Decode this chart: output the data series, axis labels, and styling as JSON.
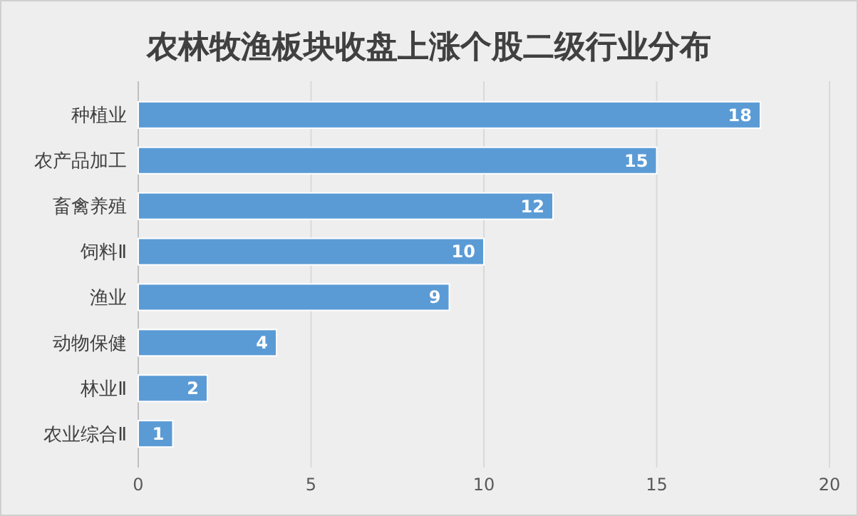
{
  "chart_data": {
    "type": "bar",
    "orientation": "horizontal",
    "title": "农林牧渔板块收盘上涨个股二级行业分布",
    "categories": [
      "种植业",
      "农产品加工",
      "畜禽养殖",
      "饲料Ⅱ",
      "渔业",
      "动物保健",
      "林业Ⅱ",
      "农业综合Ⅱ"
    ],
    "values": [
      18,
      15,
      12,
      10,
      9,
      4,
      2,
      1
    ],
    "color": "#5b9bd5",
    "xlim": [
      0,
      20
    ],
    "xticks": [
      0,
      5,
      10,
      15,
      20
    ],
    "grid": "x",
    "data_labels": true
  }
}
